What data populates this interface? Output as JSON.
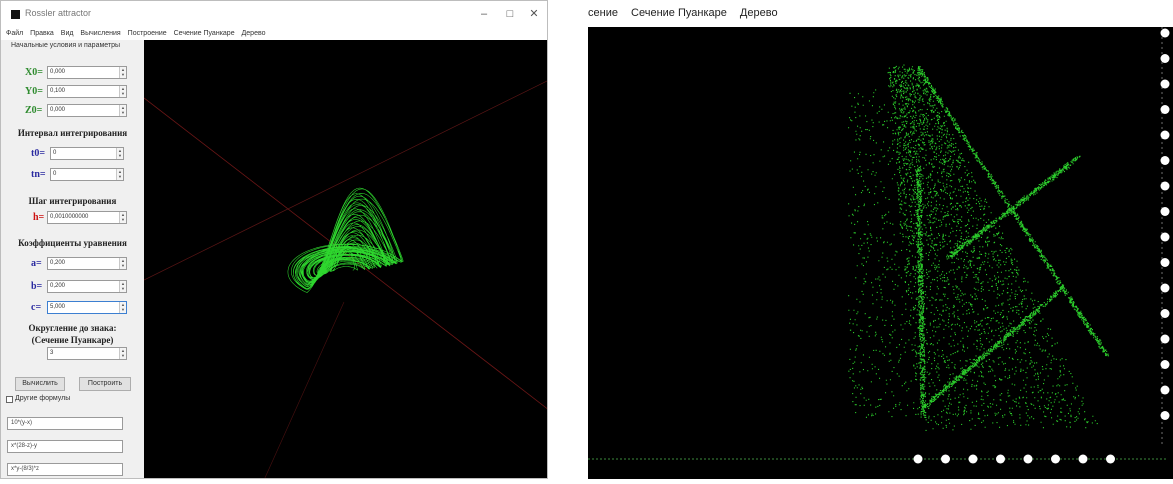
{
  "window": {
    "title": "Rossler attractor",
    "controls": {
      "minimize": "–",
      "maximize": "□",
      "close": "✕"
    }
  },
  "menu": [
    "Файл",
    "Правка",
    "Вид",
    "Вычисления",
    "Построение",
    "Сечение Пуанкаре",
    "Дерево"
  ],
  "panel": {
    "group_caption": "Начальные условия и параметры",
    "x0_label": "X0=",
    "x0_value": "0,000",
    "y0_label": "Y0=",
    "y0_value": "0,100",
    "z0_label": "Z0=",
    "z0_value": "0,000",
    "interval_heading": "Интервал интегрирования",
    "t0_label": "t0=",
    "t0_value": "0",
    "tn_label": "tn=",
    "tn_value": "0",
    "step_heading": "Шаг интегрирования",
    "h_label": "h=",
    "h_value": "0,0010000000",
    "coef_heading": "Коэффициенты уравнения",
    "a_label": "a=",
    "a_value": "0,200",
    "b_label": "b=",
    "b_value": "0,200",
    "c_label": "c=",
    "c_value": "5,000",
    "round_heading_1": "Округление до знака:",
    "round_heading_2": "(Сечение Пуанкаре)",
    "round_value": "3",
    "compute_button": "Вычислить",
    "build_button": "Построить",
    "other_formula_label": "Другие формулы",
    "formula_1": "10*(y-x)",
    "formula_2": "x*(28-z)-y",
    "formula_3": "x*y-(8/3)*z"
  },
  "menu2": [
    "сение",
    "Сечение Пуанкаре",
    "Дерево"
  ],
  "colors": {
    "attractor": "#33ee33",
    "plot_bg": "#000000",
    "axis_lines": "#7a1a1a"
  }
}
